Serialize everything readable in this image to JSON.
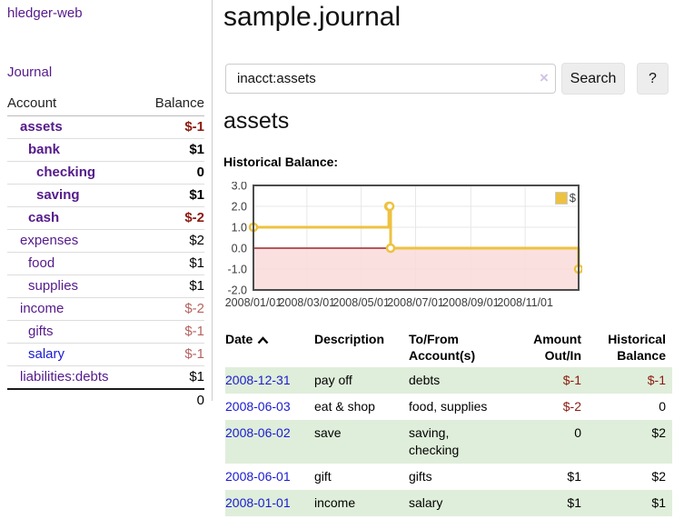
{
  "app": {
    "title": "hledger-web"
  },
  "sidebar": {
    "journal_link": "Journal",
    "accounts_table": {
      "headers": {
        "account": "Account",
        "balance": "Balance"
      },
      "rows": [
        {
          "name": "assets",
          "balance": "$-1",
          "level": 0,
          "bold": true,
          "balance_style": "negstrong"
        },
        {
          "name": "bank",
          "balance": "$1",
          "level": 1,
          "bold": true,
          "balance_style": "strong"
        },
        {
          "name": "checking",
          "balance": "0",
          "level": 2,
          "bold": true,
          "balance_style": "strong"
        },
        {
          "name": "saving",
          "balance": "$1",
          "level": 2,
          "bold": true,
          "balance_style": "strong"
        },
        {
          "name": "cash",
          "balance": "$-2",
          "level": 1,
          "bold": true,
          "balance_style": "negstrong"
        },
        {
          "name": "expenses",
          "balance": "$2",
          "level": 0,
          "bold": false,
          "balance_style": "normal"
        },
        {
          "name": "food",
          "balance": "$1",
          "level": 1,
          "bold": false,
          "balance_style": "normal"
        },
        {
          "name": "supplies",
          "balance": "$1",
          "level": 1,
          "bold": false,
          "balance_style": "normal"
        },
        {
          "name": "income",
          "balance": "$-2",
          "level": 0,
          "bold": false,
          "balance_style": "neg"
        },
        {
          "name": "gifts",
          "balance": "$-1",
          "level": 1,
          "bold": false,
          "balance_style": "neg"
        },
        {
          "name": "salary",
          "balance": "$-1",
          "level": 1,
          "bold": false,
          "balance_style": "neg",
          "link_color": "blue"
        },
        {
          "name": "liabilities:debts",
          "balance": "$1",
          "level": 0,
          "bold": false,
          "balance_style": "normal"
        }
      ],
      "total": "0"
    }
  },
  "main": {
    "title": "sample.journal",
    "search": {
      "value": "inacct:assets",
      "clear_icon": "×",
      "button": "Search",
      "help_button": "?"
    },
    "account_heading": "assets",
    "chart_label": "Historical Balance:"
  },
  "chart_data": {
    "type": "line",
    "step": true,
    "title": "Historical Balance:",
    "series": [
      {
        "name": "$",
        "color": "#edc240",
        "points": [
          [
            "2008-01-01",
            1
          ],
          [
            "2008-06-01",
            2
          ],
          [
            "2008-06-02",
            2
          ],
          [
            "2008-06-03",
            0
          ],
          [
            "2008-12-31",
            -1
          ]
        ]
      }
    ],
    "x_ticks": [
      "2008/01/01",
      "2008/03/01",
      "2008/05/01",
      "2008/07/01",
      "2008/09/01",
      "2008/11/01"
    ],
    "y_ticks": [
      "3.0",
      "2.0",
      "1.0",
      "0.0",
      "-1.0",
      "-2.0"
    ],
    "ylim": [
      -2,
      3
    ],
    "grid": true,
    "legend": "$",
    "legend_position": "top-right",
    "negative_region_color": "#fadbdb",
    "zero_line_color": "#8b0000",
    "border_color": "#4c4c4c",
    "grid_color": "#e7e7e7"
  },
  "register_table": {
    "headers": {
      "date": "Date",
      "description": "Description",
      "tofrom": "To/From Account(s)",
      "amount": "Amount Out/In",
      "balance": "Historical Balance"
    },
    "rows": [
      {
        "date": "2008-12-31",
        "description": "pay off",
        "accounts": "debts",
        "amount": "$-1",
        "amount_neg": true,
        "balance": "$-1",
        "balance_neg": true
      },
      {
        "date": "2008-06-03",
        "description": "eat & shop",
        "accounts": "food, supplies",
        "amount": "$-2",
        "amount_neg": true,
        "balance": "0",
        "balance_neg": false
      },
      {
        "date": "2008-06-02",
        "description": "save",
        "accounts": "saving, checking",
        "amount": "0",
        "amount_neg": false,
        "balance": "$2",
        "balance_neg": false
      },
      {
        "date": "2008-06-01",
        "description": "gift",
        "accounts": "gifts",
        "amount": "$1",
        "amount_neg": false,
        "balance": "$2",
        "balance_neg": false
      },
      {
        "date": "2008-01-01",
        "description": "income",
        "accounts": "salary",
        "amount": "$1",
        "amount_neg": false,
        "balance": "$1",
        "balance_neg": false
      }
    ]
  }
}
